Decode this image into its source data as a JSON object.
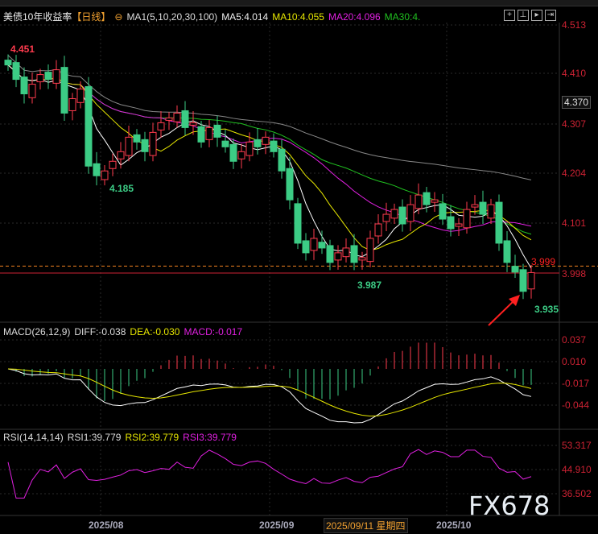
{
  "header": {
    "title": "美债10年收益率",
    "period": "【日线】",
    "ma_label": "MA1(5,10,20,30,100)",
    "ma5": "MA5:4.014",
    "ma10": "MA10:4.055",
    "ma20": "MA20:4.096",
    "ma30": "MA30:4."
  },
  "macd_legend": {
    "name": "MACD(26,12,9)",
    "diff": "DIFF:-0.038",
    "dea": "DEA:-0.030",
    "macd": "MACD:-0.017"
  },
  "rsi_legend": {
    "name": "RSI(14,14,14)",
    "rsi1": "RSI1:39.779",
    "rsi2": "RSI2:39.779",
    "rsi3": "RSI3:39.779"
  },
  "annotations": {
    "high": "4.451",
    "low1": "4.185",
    "low2": "3.987",
    "low3": "3.935",
    "last": "3.999"
  },
  "watermark": "FX678",
  "colors": {
    "up": "#ff3b4e",
    "down": "#3ccc85",
    "ma5": "#ffffff",
    "ma10": "#e6e600",
    "ma20": "#e020e0",
    "ma30": "#20c020",
    "ma100": "#888888",
    "axis": "#cc2233"
  },
  "chart_data": {
    "type": "candlestick",
    "price_axis": {
      "ticks": [
        "4.513",
        "4.410",
        "4.370",
        "4.307",
        "4.204",
        "4.101",
        "3.999",
        "3.998"
      ],
      "range": [
        3.93,
        4.52
      ]
    },
    "macd_axis": {
      "ticks": [
        "0.037",
        "0.010",
        "-0.017",
        "-0.044"
      ]
    },
    "rsi_axis": {
      "ticks": [
        "53.317",
        "44.910",
        "36.502"
      ]
    },
    "x_ticks": [
      "2025/08",
      "2025/09",
      "2025/10"
    ],
    "cursor_date": "2025/09/11 星期四",
    "closes": [
      4.43,
      4.4,
      4.37,
      4.39,
      4.41,
      4.4,
      4.42,
      4.33,
      4.36,
      4.38,
      4.22,
      4.2,
      4.21,
      4.23,
      4.25,
      4.28,
      4.27,
      4.25,
      4.29,
      4.31,
      4.32,
      4.33,
      4.3,
      4.31,
      4.27,
      4.3,
      4.28,
      4.26,
      4.23,
      4.25,
      4.27,
      4.26,
      4.28,
      4.25,
      4.21,
      4.15,
      4.06,
      4.04,
      4.07,
      4.05,
      4.02,
      4.04,
      4.05,
      4.02,
      4.03,
      4.07,
      4.1,
      4.12,
      4.13,
      4.1,
      4.14,
      4.16,
      4.14,
      4.15,
      4.11,
      4.09,
      4.1,
      4.13,
      4.14,
      4.12,
      4.14,
      4.06,
      4.02,
      4.0,
      3.96,
      3.999
    ]
  }
}
